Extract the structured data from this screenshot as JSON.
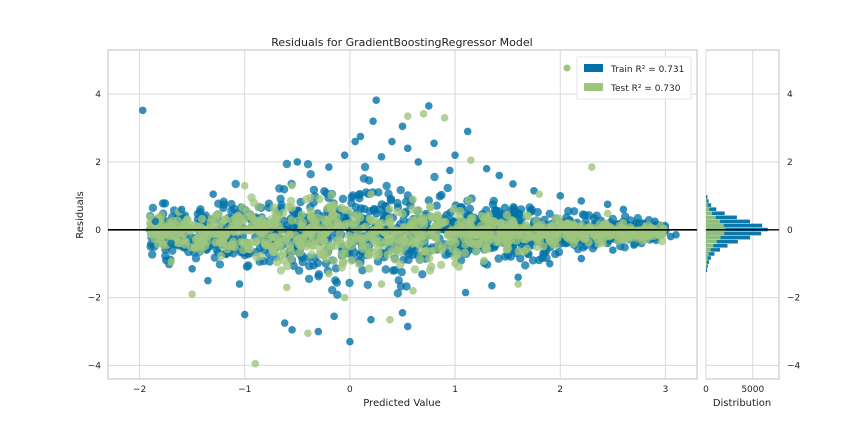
{
  "chart_data": {
    "type": "scatter",
    "title": "Residuals for GradientBoostingRegressor Model",
    "xlabel": "Predicted Value",
    "ylabel": "Residuals",
    "xlim": [
      -2.3,
      3.3
    ],
    "ylim": [
      -4.4,
      5.3
    ],
    "x_ticks": [
      "−2",
      "−1",
      "0",
      "1",
      "2",
      "3"
    ],
    "y_ticks": [
      "−4",
      "−2",
      "0",
      "2",
      "4"
    ],
    "zero_line": 0,
    "grid": true,
    "legend_position": "top-right",
    "legend": [
      {
        "label": "Train R² = 0.731",
        "color": "#0072a7"
      },
      {
        "label": "Test R² = 0.730",
        "color": "#9dc57c"
      }
    ],
    "series": [
      {
        "name": "Train",
        "color": "#0072a7",
        "points": [
          [
            -1.97,
            3.52
          ],
          [
            -1.75,
            -0.9
          ],
          [
            -1.5,
            -1.15
          ],
          [
            -1.35,
            -1.5
          ],
          [
            -1.05,
            -1.6
          ],
          [
            -1.0,
            -2.5
          ],
          [
            -0.62,
            -2.75
          ],
          [
            -0.55,
            -2.95
          ],
          [
            -0.3,
            -3.0
          ],
          [
            -0.15,
            -2.55
          ],
          [
            0.0,
            -3.3
          ],
          [
            0.2,
            -2.65
          ],
          [
            0.5,
            -2.45
          ],
          [
            0.55,
            -2.85
          ],
          [
            -0.5,
            2.0
          ],
          [
            -0.2,
            1.85
          ],
          [
            -0.05,
            2.2
          ],
          [
            0.05,
            2.6
          ],
          [
            0.1,
            2.75
          ],
          [
            0.22,
            3.2
          ],
          [
            0.25,
            3.82
          ],
          [
            0.4,
            2.6
          ],
          [
            0.5,
            3.05
          ],
          [
            0.55,
            2.4
          ],
          [
            0.75,
            3.65
          ],
          [
            0.8,
            2.55
          ],
          [
            0.95,
            1.75
          ],
          [
            1.0,
            2.2
          ],
          [
            1.12,
            2.9
          ],
          [
            1.3,
            1.8
          ],
          [
            1.55,
            1.35
          ],
          [
            1.75,
            1.15
          ],
          [
            2.0,
            1.0
          ],
          [
            2.2,
            0.85
          ],
          [
            2.45,
            0.75
          ],
          [
            2.6,
            0.6
          ],
          [
            2.75,
            0.2
          ],
          [
            2.9,
            0.25
          ],
          [
            3.05,
            -0.2
          ],
          [
            3.1,
            -0.15
          ],
          [
            2.7,
            -0.45
          ],
          [
            2.5,
            -0.6
          ],
          [
            2.2,
            -0.85
          ],
          [
            1.9,
            -1.0
          ],
          [
            1.6,
            -1.4
          ],
          [
            1.35,
            -1.65
          ],
          [
            1.1,
            -1.85
          ],
          [
            -1.85,
            0.25
          ],
          [
            -1.7,
            -0.4
          ],
          [
            -1.6,
            0.6
          ],
          [
            -1.3,
            1.05
          ],
          [
            0.3,
            2.15
          ],
          [
            0.65,
            2.0
          ],
          [
            1.42,
            1.6
          ]
        ]
      },
      {
        "name": "Test",
        "color": "#9dc57c",
        "points": [
          [
            -0.9,
            -3.95
          ],
          [
            -1.5,
            -1.9
          ],
          [
            -1.9,
            0.38
          ],
          [
            -1.7,
            -0.95
          ],
          [
            -1.0,
            1.3
          ],
          [
            -0.55,
            1.3
          ],
          [
            0.38,
            -2.65
          ],
          [
            -0.4,
            -3.05
          ],
          [
            -0.05,
            -2.0
          ],
          [
            0.55,
            3.35
          ],
          [
            0.7,
            3.42
          ],
          [
            0.9,
            3.3
          ],
          [
            1.15,
            2.05
          ],
          [
            1.8,
            1.05
          ],
          [
            2.3,
            1.85
          ],
          [
            2.45,
            0.48
          ],
          [
            2.9,
            -0.1
          ],
          [
            1.6,
            -1.6
          ],
          [
            1.0,
            -1.0
          ],
          [
            0.6,
            -1.8
          ],
          [
            -0.2,
            -1.3
          ],
          [
            -1.2,
            -0.4
          ],
          [
            -0.8,
            0.2
          ],
          [
            0.2,
            1.05
          ],
          [
            0.8,
            -0.6
          ],
          [
            1.9,
            -0.35
          ],
          [
            2.6,
            0.2
          ],
          [
            -1.55,
            0.3
          ],
          [
            0.3,
            -1.6
          ],
          [
            -0.6,
            -1.7
          ]
        ]
      }
    ],
    "distribution": {
      "xlabel": "Distribution",
      "xlim": [
        0,
        7800
      ],
      "x_ticks": [
        {
          "value": 0,
          "label": "0"
        },
        {
          "value": 5000,
          "label": "5000"
        }
      ],
      "y_ticks": [
        "4",
        "2",
        "0",
        "−2",
        "−4"
      ],
      "bin_width": 0.12,
      "train": [
        [
          -1.2,
          120
        ],
        [
          -1.08,
          200
        ],
        [
          -0.96,
          330
        ],
        [
          -0.84,
          520
        ],
        [
          -0.72,
          900
        ],
        [
          -0.6,
          1500
        ],
        [
          -0.48,
          2300
        ],
        [
          -0.36,
          3400
        ],
        [
          -0.24,
          4700
        ],
        [
          -0.12,
          5900
        ],
        [
          0.0,
          6600
        ],
        [
          0.12,
          6000
        ],
        [
          0.24,
          4700
        ],
        [
          0.36,
          3300
        ],
        [
          0.48,
          2000
        ],
        [
          0.6,
          1100
        ],
        [
          0.72,
          550
        ],
        [
          0.84,
          280
        ],
        [
          0.96,
          150
        ]
      ],
      "test": [
        [
          -1.08,
          60
        ],
        [
          -0.96,
          110
        ],
        [
          -0.84,
          180
        ],
        [
          -0.72,
          300
        ],
        [
          -0.6,
          500
        ],
        [
          -0.48,
          780
        ],
        [
          -0.36,
          1150
        ],
        [
          -0.24,
          1550
        ],
        [
          -0.12,
          1950
        ],
        [
          0.0,
          2100
        ],
        [
          0.12,
          1900
        ],
        [
          0.24,
          1500
        ],
        [
          0.36,
          1050
        ],
        [
          0.48,
          650
        ],
        [
          0.6,
          350
        ],
        [
          0.72,
          170
        ],
        [
          0.84,
          80
        ]
      ]
    }
  }
}
